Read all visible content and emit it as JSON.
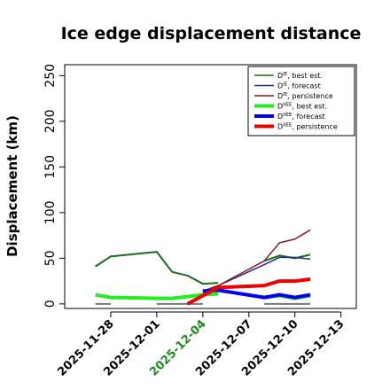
{
  "chart_data": {
    "type": "line",
    "title": "Ice edge displacement distance",
    "xlabel": "",
    "ylabel": "Displacement (km)",
    "ylim": [
      -5,
      262
    ],
    "yticks": [
      0,
      50,
      100,
      150,
      200,
      250
    ],
    "xlim": [
      "2025-11-25",
      "2025-12-14"
    ],
    "xticks": [
      "2025-11-28",
      "2025-12-01",
      "2025-12-04",
      "2025-12-07",
      "2025-12-10",
      "2025-12-13"
    ],
    "highlight_tick": "2025-12-04",
    "highlight_color": "#1a8a1a",
    "grid": false,
    "legend_position": "top-right",
    "series": [
      {
        "name": "D^IE, best est.",
        "color": "#1a6b1a",
        "width": 2,
        "x": [
          "2025-11-27",
          "2025-11-28",
          "2025-12-01",
          "2025-12-02",
          "2025-12-03",
          "2025-12-04",
          "2025-12-05"
        ],
        "y": [
          41,
          52,
          57,
          35,
          31,
          22,
          23
        ]
      },
      {
        "name": "D^IE, best est.",
        "color": "#1a6b1a",
        "width": 2,
        "x": [
          "2025-12-08",
          "2025-12-09",
          "2025-12-10",
          "2025-12-11"
        ],
        "y": [
          47,
          53,
          50,
          54
        ]
      },
      {
        "name": "D^IE, forecast",
        "color": "#1e2a8c",
        "width": 1.5,
        "x": [
          "2025-12-04",
          "2025-12-05",
          "2025-12-08",
          "2025-12-09",
          "2025-12-10",
          "2025-12-11"
        ],
        "y": [
          14,
          20,
          43,
          51,
          51,
          49
        ]
      },
      {
        "name": "D^IE, persistence",
        "color": "#8b1a1a",
        "width": 1.5,
        "x": [
          "2025-12-04",
          "2025-12-05",
          "2025-12-08",
          "2025-12-09",
          "2025-12-10",
          "2025-12-11"
        ],
        "y": [
          14,
          20,
          47,
          67,
          71,
          81
        ]
      },
      {
        "name": "D^IIEE, best est.",
        "color": "#22ee22",
        "width": 4,
        "x": [
          "2025-11-27",
          "2025-11-28",
          "2025-12-01",
          "2025-12-02",
          "2025-12-03",
          "2025-12-04",
          "2025-12-05"
        ],
        "y": [
          10,
          7,
          6,
          6,
          8,
          10,
          11
        ]
      },
      {
        "name": "D^IIEE, best est.",
        "color": "#22ee22",
        "width": 4,
        "x": [
          "2025-12-08",
          "2025-12-09",
          "2025-12-10",
          "2025-12-11"
        ],
        "y": [
          7,
          9,
          6,
          9
        ]
      },
      {
        "name": "D^IIEE, forecast",
        "color": "#0000ee",
        "width": 4,
        "x": [
          "2025-12-04",
          "2025-12-05",
          "2025-12-08",
          "2025-12-09",
          "2025-12-10",
          "2025-12-11"
        ],
        "y": [
          14,
          15,
          7,
          10,
          7,
          10
        ]
      },
      {
        "name": "D^IIEE, persistence",
        "color": "#ee0000",
        "width": 4,
        "x": [
          "2025-12-03",
          "2025-12-05",
          "2025-12-08",
          "2025-12-09",
          "2025-12-10",
          "2025-12-11"
        ],
        "y": [
          0,
          18,
          20,
          25,
          25,
          27
        ]
      }
    ],
    "baseline_segments": {
      "color": "#777777",
      "y": 0,
      "ranges": [
        [
          "2025-11-27",
          "2025-11-28"
        ],
        [
          "2025-12-01",
          "2025-12-04"
        ],
        [
          "2025-12-08",
          "2025-12-11"
        ]
      ]
    },
    "legend": [
      {
        "base": "D",
        "sup": "IE",
        "label": ", best est.",
        "color": "#1a6b1a",
        "width": 1.5
      },
      {
        "base": "D",
        "sup": "IE",
        "label": ", forecast",
        "color": "#1e2a8c",
        "width": 1.5
      },
      {
        "base": "D",
        "sup": "IE",
        "label": ", persistence",
        "color": "#8b1a1a",
        "width": 1.5
      },
      {
        "base": "D",
        "sup": "IIEE",
        "label": ", best est.",
        "color": "#22ee22",
        "width": 4
      },
      {
        "base": "D",
        "sup": "IIEE",
        "label": ", forecast",
        "color": "#0000ee",
        "width": 4
      },
      {
        "base": "D",
        "sup": "IIEE",
        "label": ", persistence",
        "color": "#ee0000",
        "width": 4
      }
    ]
  }
}
